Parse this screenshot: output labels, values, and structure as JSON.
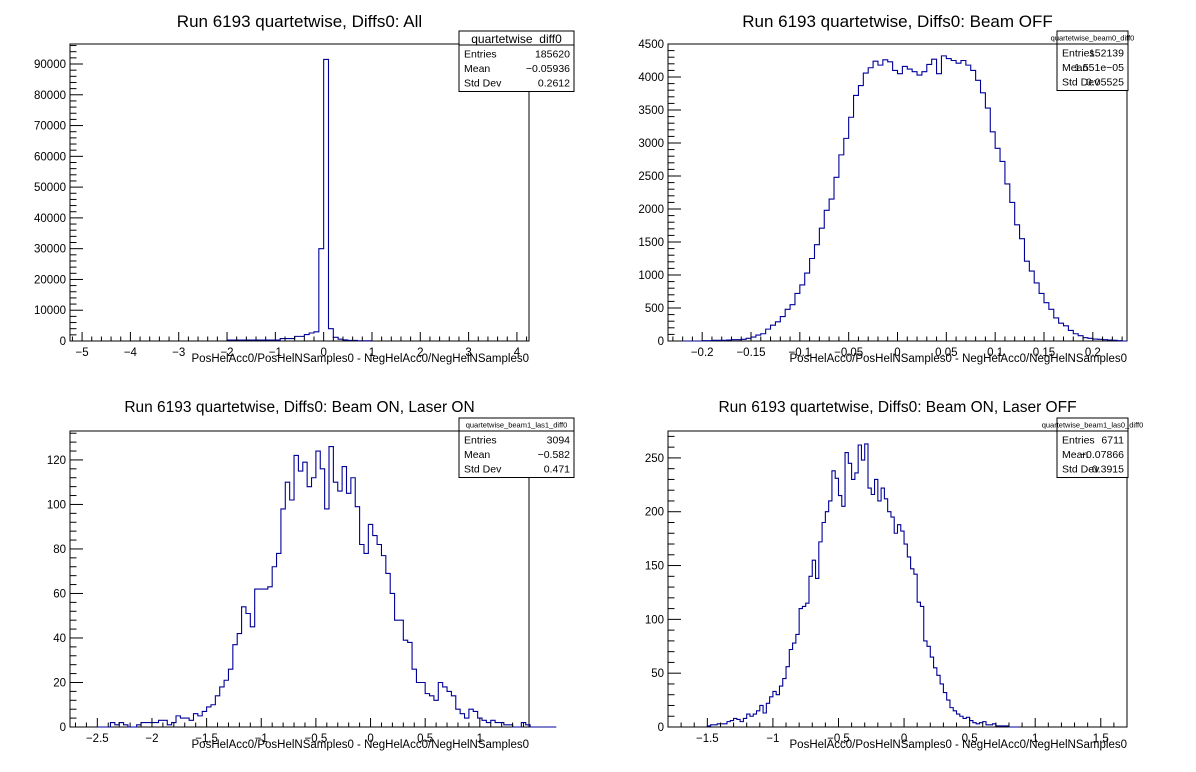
{
  "chart_data": [
    {
      "type": "bar",
      "title": "Run 6193 quartetwise, Diffs0: All",
      "xlabel": "PosHelAcc0/PosHelNSamples0 - NegHelAcc0/NegHelNSamples0",
      "ylabel": "",
      "xlim": [
        -5.25,
        4.25
      ],
      "ylim": [
        0,
        96500
      ],
      "grid": false,
      "xticks": [
        -5,
        -4,
        -3,
        -2,
        -1,
        0,
        1,
        2,
        3,
        4
      ],
      "xtick_labels": [
        "−5",
        "−4",
        "−3",
        "−2",
        "−1",
        "0",
        "1",
        "2",
        "3",
        "4"
      ],
      "yticks": [
        0,
        10000,
        20000,
        30000,
        40000,
        50000,
        60000,
        70000,
        80000,
        90000
      ],
      "ytick_labels": [
        "0",
        "10000",
        "20000",
        "30000",
        "40000",
        "50000",
        "60000",
        "70000",
        "80000",
        "90000"
      ],
      "bin_edges": [
        -2.0,
        -0.9,
        -0.6,
        -0.4,
        -0.3,
        -0.2,
        -0.1,
        0.0,
        0.1,
        0.2,
        0.3,
        0.4,
        0.5,
        0.7,
        1.0
      ],
      "values": [
        300,
        800,
        1500,
        2100,
        2600,
        3000,
        30000,
        91500,
        4000,
        1200,
        600,
        350,
        200,
        80
      ],
      "color": "#000099",
      "stats": {
        "name": "quartetwise_diff0",
        "rows": [
          {
            "label": "Entries",
            "value": "185620"
          },
          {
            "label": "Mean",
            "value": "−0.05936"
          },
          {
            "label": "Std Dev",
            "value": "0.2612"
          }
        ]
      }
    },
    {
      "type": "bar",
      "title": "Run 6193 quartetwise, Diffs0: Beam OFF",
      "xlabel": "PosHelAcc0/PosHelNSamples0 - NegHelAcc0/NegHelNSamples0",
      "ylabel": "",
      "xlim": [
        -0.235,
        0.235
      ],
      "ylim": [
        0,
        4500
      ],
      "grid": false,
      "xticks": [
        -0.2,
        -0.15,
        -0.1,
        -0.05,
        0,
        0.05,
        0.1,
        0.15,
        0.2
      ],
      "xtick_labels": [
        "−0.2",
        "−0.15",
        "−0.1",
        "−0.05",
        "0",
        "0.05",
        "0.1",
        "0.15",
        "0.2"
      ],
      "yticks": [
        0,
        500,
        1000,
        1500,
        2000,
        2500,
        3000,
        3500,
        4000,
        4500
      ],
      "ytick_labels": [
        "0",
        "500",
        "1000",
        "1500",
        "2000",
        "2500",
        "3000",
        "3500",
        "4000",
        "4500"
      ],
      "bin_start": -0.235,
      "bin_width": 0.005,
      "values": [
        0,
        0,
        0,
        0,
        0,
        0,
        0,
        5,
        5,
        10,
        10,
        10,
        15,
        20,
        20,
        25,
        40,
        60,
        90,
        110,
        180,
        240,
        290,
        370,
        480,
        550,
        720,
        850,
        1030,
        1250,
        1460,
        1710,
        1980,
        2150,
        2480,
        2820,
        3070,
        3390,
        3720,
        3870,
        4060,
        4140,
        4240,
        4180,
        4260,
        4230,
        4100,
        4050,
        4160,
        4120,
        4080,
        4030,
        4080,
        4190,
        4270,
        4050,
        4320,
        4280,
        4250,
        4210,
        4250,
        4180,
        4100,
        3950,
        3760,
        3530,
        3170,
        2920,
        2720,
        2380,
        2100,
        1760,
        1550,
        1210,
        1060,
        880,
        720,
        580,
        480,
        350,
        270,
        230,
        160,
        110,
        80,
        50,
        40,
        30,
        25,
        20,
        15,
        10,
        5,
        0
      ],
      "color": "#000099",
      "stats": {
        "name": "quartetwise_beam0_diff0",
        "rows": [
          {
            "label": "Entries",
            "value": "152139"
          },
          {
            "label": "Mean",
            "value": "1.551e−05"
          },
          {
            "label": "Std Dev",
            "value": "0.05525"
          }
        ]
      }
    },
    {
      "type": "bar",
      "title": "Run 6193 quartetwise, Diffs0: Beam ON, Laser ON",
      "xlabel": "PosHelAcc0/PosHelNSamples0 - NegHelAcc0/NegHelNSamples0",
      "ylabel": "",
      "xlim": [
        -2.75,
        1.45
      ],
      "ylim": [
        0,
        133
      ],
      "grid": false,
      "xticks": [
        -2.5,
        -2,
        -1.5,
        -1,
        -0.5,
        0,
        0.5,
        1
      ],
      "xtick_labels": [
        "−2.5",
        "−2",
        "−1.5",
        "−1",
        "−0.5",
        "0",
        "0.5",
        "1"
      ],
      "yticks": [
        0,
        20,
        40,
        60,
        80,
        100,
        120
      ],
      "ytick_labels": [
        "0",
        "20",
        "40",
        "60",
        "80",
        "100",
        "120"
      ],
      "bin_start": -2.5,
      "bin_width": 0.04,
      "values": [
        0,
        0,
        0,
        2,
        1,
        2,
        1,
        0,
        0,
        1,
        2,
        2,
        2,
        2,
        3,
        3,
        1,
        2,
        5,
        4,
        4,
        3,
        6,
        5,
        7,
        9,
        10,
        14,
        18,
        21,
        26,
        37,
        42,
        54,
        51,
        45,
        62,
        62,
        62,
        63,
        72,
        78,
        98,
        110,
        102,
        122,
        115,
        119,
        108,
        112,
        124,
        116,
        98,
        126,
        110,
        106,
        117,
        105,
        112,
        99,
        82,
        78,
        91,
        86,
        82,
        77,
        69,
        60,
        48,
        48,
        39,
        38,
        26,
        20,
        20,
        15,
        14,
        12,
        20,
        18,
        16,
        14,
        8,
        6,
        4,
        8,
        7,
        4,
        3,
        2,
        3,
        2,
        2,
        1,
        1,
        0,
        0,
        2,
        1,
        0,
        0,
        0,
        0,
        0,
        0
      ],
      "color": "#000099",
      "stats": {
        "name": "quartetwise_beam1_las1_diff0",
        "rows": [
          {
            "label": "Entries",
            "value": "3094"
          },
          {
            "label": "Mean",
            "value": "−0.582"
          },
          {
            "label": "Std Dev",
            "value": "0.471"
          }
        ]
      }
    },
    {
      "type": "bar",
      "title": "Run 6193 quartetwise, Diffs0: Beam ON, Laser OFF",
      "xlabel": "PosHelAcc0/PosHelNSamples0 - NegHelAcc0/NegHelNSamples0",
      "ylabel": "",
      "xlim": [
        -1.8,
        1.7
      ],
      "ylim": [
        0,
        275
      ],
      "grid": false,
      "xticks": [
        -1.5,
        -1,
        -0.5,
        0,
        0.5,
        1,
        1.5
      ],
      "xtick_labels": [
        "−1.5",
        "−1",
        "−0.5",
        "0",
        "0.5",
        "1",
        "1.5"
      ],
      "yticks": [
        0,
        50,
        100,
        150,
        200,
        250
      ],
      "ytick_labels": [
        "0",
        "50",
        "100",
        "150",
        "200",
        "250"
      ],
      "bin_start": -1.5,
      "bin_width": 0.025,
      "values": [
        1,
        2,
        2,
        3,
        3,
        3,
        5,
        6,
        8,
        7,
        5,
        8,
        12,
        10,
        12,
        15,
        20,
        13,
        22,
        28,
        33,
        30,
        38,
        45,
        56,
        72,
        78,
        86,
        110,
        112,
        115,
        140,
        155,
        138,
        172,
        190,
        200,
        210,
        238,
        231,
        215,
        205,
        255,
        245,
        230,
        236,
        262,
        248,
        263,
        222,
        216,
        230,
        210,
        222,
        212,
        200,
        195,
        180,
        188,
        182,
        170,
        158,
        147,
        142,
        116,
        112,
        80,
        75,
        65,
        55,
        48,
        40,
        32,
        25,
        18,
        15,
        12,
        10,
        8,
        9,
        6,
        4,
        3,
        4,
        5,
        2,
        2,
        3,
        1,
        1,
        1,
        1,
        0,
        0,
        0
      ],
      "color": "#000099",
      "stats": {
        "name": "quartetwise_beam1_las0_diff0",
        "rows": [
          {
            "label": "Entries",
            "value": "6711"
          },
          {
            "label": "Mean",
            "value": "−0.07866"
          },
          {
            "label": "Std Dev",
            "value": "0.3915"
          }
        ]
      }
    }
  ]
}
